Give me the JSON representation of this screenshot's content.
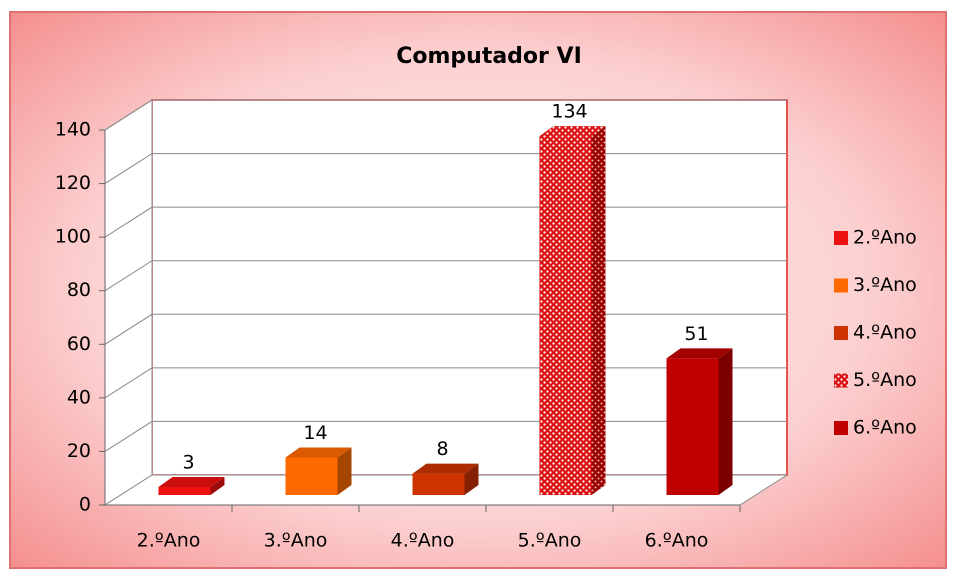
{
  "chart_data": {
    "type": "bar",
    "title": "Computador VI",
    "categories": [
      "2.ºAno",
      "3.ºAno",
      "4.ºAno",
      "5.ºAno",
      "6.ºAno"
    ],
    "values": [
      3,
      14,
      8,
      134,
      51
    ],
    "colors": [
      "#ee1111",
      "#ff6a00",
      "#cc3300",
      "#dd1111",
      "#c00000"
    ],
    "ylim": [
      0,
      140
    ],
    "yticks": [
      0,
      20,
      40,
      60,
      80,
      100,
      120,
      140
    ],
    "grid": true,
    "legend": "right"
  }
}
